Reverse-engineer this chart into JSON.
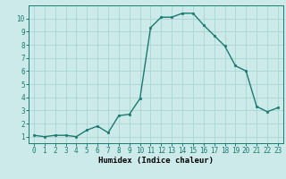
{
  "x": [
    0,
    1,
    2,
    3,
    4,
    5,
    6,
    7,
    8,
    9,
    10,
    11,
    12,
    13,
    14,
    15,
    16,
    17,
    18,
    19,
    20,
    21,
    22,
    23
  ],
  "y": [
    1.1,
    1.0,
    1.1,
    1.1,
    1.0,
    1.5,
    1.8,
    1.3,
    2.6,
    2.7,
    3.9,
    9.3,
    10.1,
    10.1,
    10.4,
    10.4,
    9.5,
    8.7,
    7.9,
    6.4,
    6.0,
    3.3,
    2.9,
    3.2
  ],
  "line_color": "#1a7a6e",
  "bg_color": "#cceaea",
  "grid_color": "#aad4d4",
  "xlabel": "Humidex (Indice chaleur)",
  "xlim": [
    -0.5,
    23.5
  ],
  "ylim": [
    0.5,
    11.0
  ],
  "yticks": [
    1,
    2,
    3,
    4,
    5,
    6,
    7,
    8,
    9,
    10
  ],
  "xticks": [
    0,
    1,
    2,
    3,
    4,
    5,
    6,
    7,
    8,
    9,
    10,
    11,
    12,
    13,
    14,
    15,
    16,
    17,
    18,
    19,
    20,
    21,
    22,
    23
  ],
  "xlabel_fontsize": 6.5,
  "tick_fontsize": 5.5,
  "marker_size": 2.0,
  "line_width": 1.0
}
